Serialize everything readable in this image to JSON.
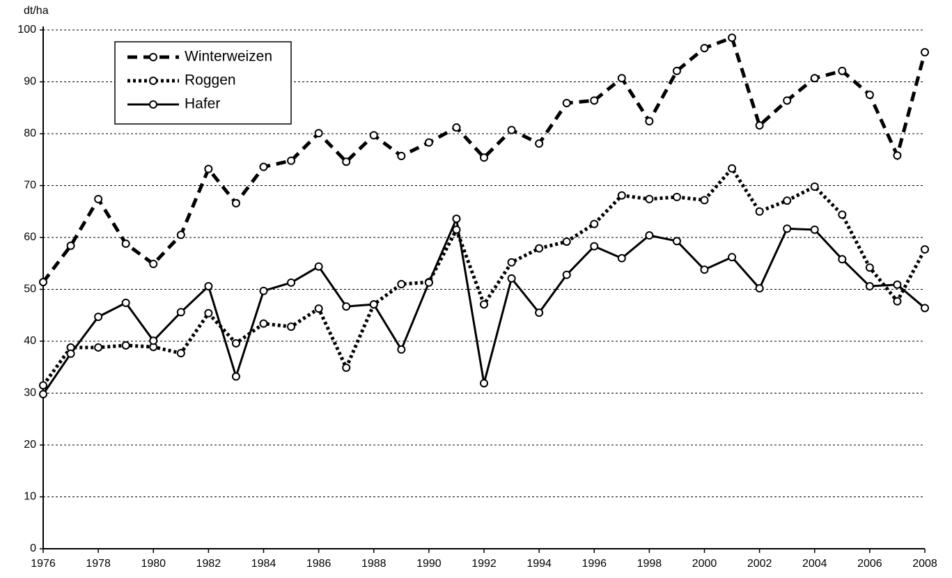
{
  "chart_data": {
    "type": "line",
    "y_unit": "dt/ha",
    "x": [
      1976,
      1977,
      1978,
      1979,
      1980,
      1981,
      1982,
      1983,
      1984,
      1985,
      1986,
      1987,
      1988,
      1989,
      1990,
      1991,
      1992,
      1993,
      1994,
      1995,
      1996,
      1997,
      1998,
      1999,
      2000,
      2001,
      2002,
      2003,
      2004,
      2005,
      2006,
      2007,
      2008
    ],
    "xlim": [
      1976,
      2008
    ],
    "xticks": [
      1976,
      1978,
      1980,
      1982,
      1984,
      1986,
      1988,
      1990,
      1992,
      1994,
      1996,
      1998,
      2000,
      2002,
      2004,
      2006,
      2008
    ],
    "ylim": [
      0,
      100
    ],
    "yticks": [
      0,
      10,
      20,
      30,
      40,
      50,
      60,
      70,
      80,
      90,
      100
    ],
    "grid": true,
    "legend": "top-left",
    "series": [
      {
        "name": "Winterweizen",
        "color": "#000000",
        "style": "dashed",
        "values": [
          51.4,
          58.4,
          67.4,
          58.8,
          54.9,
          60.5,
          73.2,
          66.6,
          73.6,
          74.8,
          80.1,
          74.6,
          79.7,
          75.7,
          78.3,
          81.2,
          75.4,
          80.7,
          78.1,
          85.9,
          86.4,
          90.7,
          82.4,
          92.1,
          96.5,
          98.5,
          81.6,
          86.4,
          90.7,
          92.1,
          87.5,
          75.8,
          95.7
        ]
      },
      {
        "name": "Roggen",
        "color": "#000000",
        "style": "dotted",
        "values": [
          31.5,
          38.8,
          38.8,
          39.2,
          38.9,
          37.7,
          45.4,
          39.6,
          43.4,
          42.8,
          46.3,
          34.9,
          47.1,
          51.0,
          51.4,
          61.5,
          47.1,
          55.2,
          57.9,
          59.2,
          62.6,
          68.1,
          67.4,
          67.8,
          67.2,
          73.3,
          65.0,
          67.1,
          69.8,
          64.4,
          54.2,
          47.7,
          57.7
        ]
      },
      {
        "name": "Hafer",
        "color": "#000000",
        "style": "solid",
        "values": [
          29.8,
          37.6,
          44.7,
          47.4,
          40.1,
          45.6,
          50.6,
          33.2,
          49.7,
          51.3,
          54.4,
          46.7,
          47.1,
          38.4,
          51.3,
          63.6,
          31.9,
          52.1,
          45.5,
          52.8,
          58.3,
          56.0,
          60.4,
          59.3,
          53.8,
          56.2,
          50.2,
          61.7,
          61.5,
          55.8,
          50.6,
          50.9,
          46.4
        ]
      }
    ]
  }
}
